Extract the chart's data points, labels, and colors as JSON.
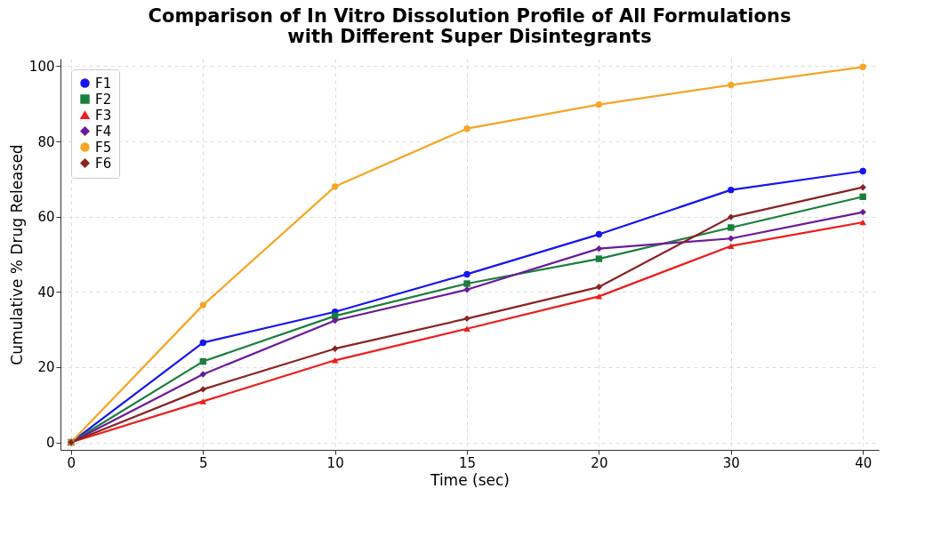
{
  "chart_data": {
    "type": "line",
    "title": "Comparison of In Vitro Dissolution Profile of All Formulations\nwith Different Super Disintegrants",
    "xlabel": "Time (sec)",
    "ylabel": "Cumulative % Drug Released",
    "categories": [
      "0",
      "5",
      "10",
      "15",
      "20",
      "30",
      "40"
    ],
    "ylim": [
      -2,
      102
    ],
    "yticks": [
      0,
      20,
      40,
      60,
      80,
      100
    ],
    "grid": true,
    "legend": "top left",
    "series": [
      {
        "name": "F1",
        "color": "#1515f0",
        "marker": "circle",
        "values": [
          0,
          26.5,
          34.7,
          44.7,
          55.3,
          67.1,
          72.1
        ]
      },
      {
        "name": "F2",
        "color": "#1a7f3c",
        "marker": "square",
        "values": [
          0,
          21.5,
          33.6,
          42.2,
          48.8,
          57.1,
          65.3
        ]
      },
      {
        "name": "F3",
        "color": "#ee1c1c",
        "marker": "triangle",
        "values": [
          0,
          10.9,
          21.8,
          30.2,
          38.8,
          52.2,
          58.5
        ]
      },
      {
        "name": "F4",
        "color": "#6a1b9a",
        "marker": "diamond",
        "values": [
          0,
          18.1,
          32.4,
          40.6,
          51.5,
          54.2,
          61.2
        ]
      },
      {
        "name": "F5",
        "color": "#f5a623",
        "marker": "circle",
        "values": [
          0,
          36.5,
          68,
          83.4,
          89.8,
          95,
          99.8
        ]
      },
      {
        "name": "F6",
        "color": "#8b2323",
        "marker": "diamond",
        "values": [
          0,
          14.1,
          24.9,
          32.9,
          41.3,
          59.9,
          67.8
        ]
      }
    ]
  }
}
